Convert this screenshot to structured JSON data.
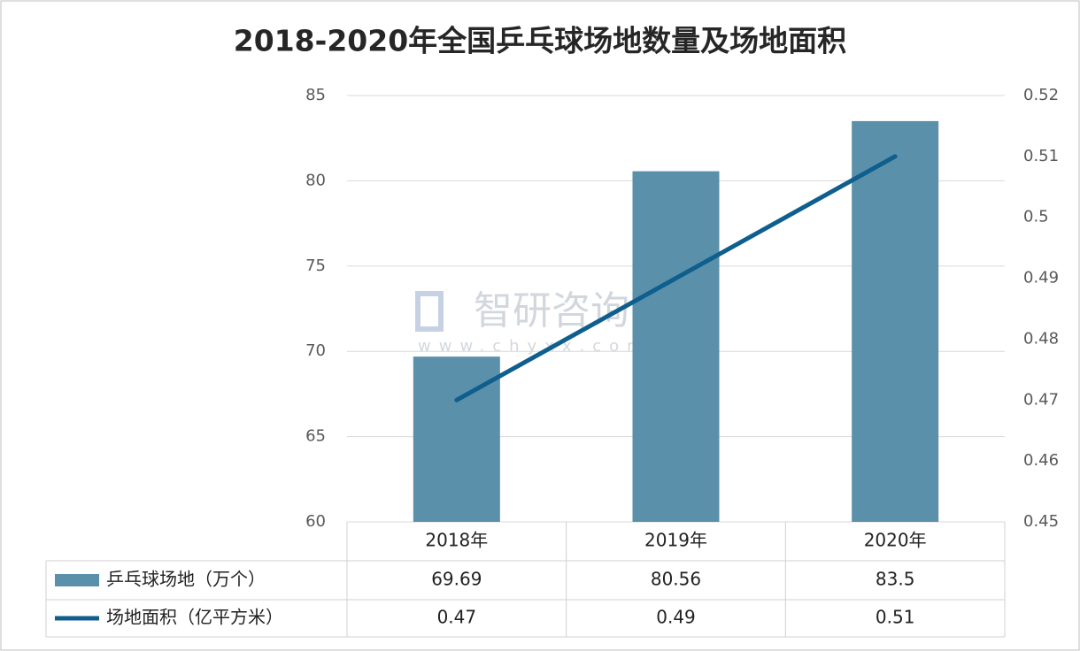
{
  "chart_data": {
    "type": "bar-line",
    "title": "2018-2020年全国乒乓球场地数量及场地面积",
    "categories": [
      "2018年",
      "2019年",
      "2020年"
    ],
    "series": [
      {
        "name": "乒乓球场地（万个）",
        "type": "bar",
        "color": "#5b90aa",
        "values": [
          69.69,
          80.56,
          83.5
        ]
      },
      {
        "name": "场地面积（亿平方米）",
        "type": "line",
        "color": "#0f5f8e",
        "axis": "y2",
        "values": [
          0.47,
          0.49,
          0.51
        ]
      }
    ],
    "ylim": [
      60,
      85
    ],
    "yticks": [
      60,
      65,
      70,
      75,
      80,
      85
    ],
    "y2lim": [
      0.45,
      0.52
    ],
    "y2ticks": [
      0.45,
      0.46,
      0.47,
      0.48,
      0.49,
      0.5,
      0.51,
      0.52
    ],
    "grid": true,
    "watermark": {
      "brand": "智研咨询",
      "url": "www.chyxx.com"
    }
  }
}
